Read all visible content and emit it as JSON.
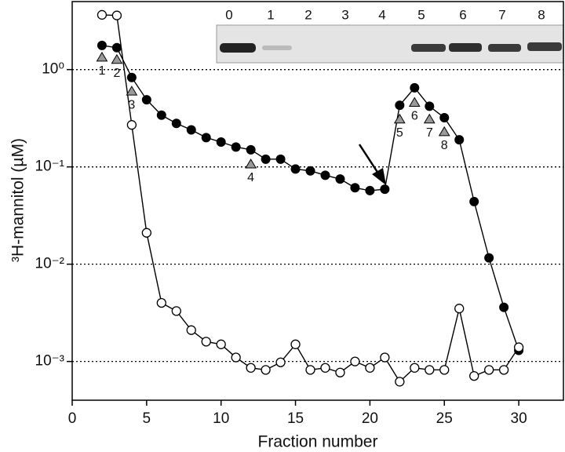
{
  "chart_data": {
    "type": "line",
    "x_label": "Fraction number",
    "y_label": "³H-mannitol (µM)",
    "xlim": [
      0,
      33
    ],
    "xticks": [
      0,
      5,
      10,
      15,
      20,
      25,
      30
    ],
    "ylim": [
      0.0004,
      5
    ],
    "y_scale": "log",
    "yticks": [
      {
        "value": 0.001,
        "label": "10⁻³"
      },
      {
        "value": 0.01,
        "label": "10⁻²"
      },
      {
        "value": 0.1,
        "label": "10⁻¹"
      },
      {
        "value": 1,
        "label": "10⁰"
      }
    ],
    "grid": true,
    "series": [
      {
        "marker": "filled-circle",
        "color": "#000000",
        "x": [
          2,
          3,
          4,
          5,
          6,
          7,
          8,
          9,
          10,
          11,
          12,
          13,
          14,
          15,
          16,
          17,
          18,
          19,
          20,
          21,
          22,
          23,
          24,
          25,
          26,
          27,
          28,
          29,
          30
        ],
        "values": [
          1.77,
          1.68,
          0.83,
          0.49,
          0.34,
          0.28,
          0.24,
          0.2,
          0.18,
          0.16,
          0.15,
          0.12,
          0.12,
          0.095,
          0.091,
          0.082,
          0.075,
          0.061,
          0.057,
          0.059,
          0.43,
          0.65,
          0.42,
          0.32,
          0.19,
          0.044,
          0.0116,
          0.0036,
          0.0013
        ]
      },
      {
        "marker": "open-circle",
        "color": "#000000",
        "x": [
          2,
          3,
          4,
          5,
          6,
          7,
          8,
          9,
          10,
          11,
          12,
          13,
          14,
          15,
          16,
          17,
          18,
          19,
          20,
          21,
          22,
          23,
          24,
          25,
          26,
          27,
          28,
          29,
          30
        ],
        "values": [
          3.65,
          3.6,
          0.27,
          0.021,
          0.004,
          0.0033,
          0.0021,
          0.0016,
          0.0015,
          0.0011,
          0.00086,
          0.00082,
          0.00098,
          0.0015,
          0.00082,
          0.00086,
          0.00077,
          0.001,
          0.00086,
          0.0011,
          0.00062,
          0.00086,
          0.00082,
          0.00082,
          0.0035,
          0.00071,
          0.00082,
          0.00082,
          0.0014
        ]
      },
      {
        "marker": "triangle",
        "color": "#999999",
        "x": [
          2,
          3,
          4,
          12,
          22,
          23,
          24,
          25
        ],
        "values": [
          1.34,
          1.27,
          0.6,
          0.107,
          0.31,
          0.46,
          0.31,
          0.23
        ],
        "point_labels": [
          "1",
          "2",
          "3",
          "4",
          "5",
          "6",
          "7",
          "8"
        ]
      }
    ]
  },
  "inset": {
    "lanes": [
      "0",
      "1",
      "2",
      "3",
      "4",
      "5",
      "6",
      "7",
      "8"
    ]
  }
}
